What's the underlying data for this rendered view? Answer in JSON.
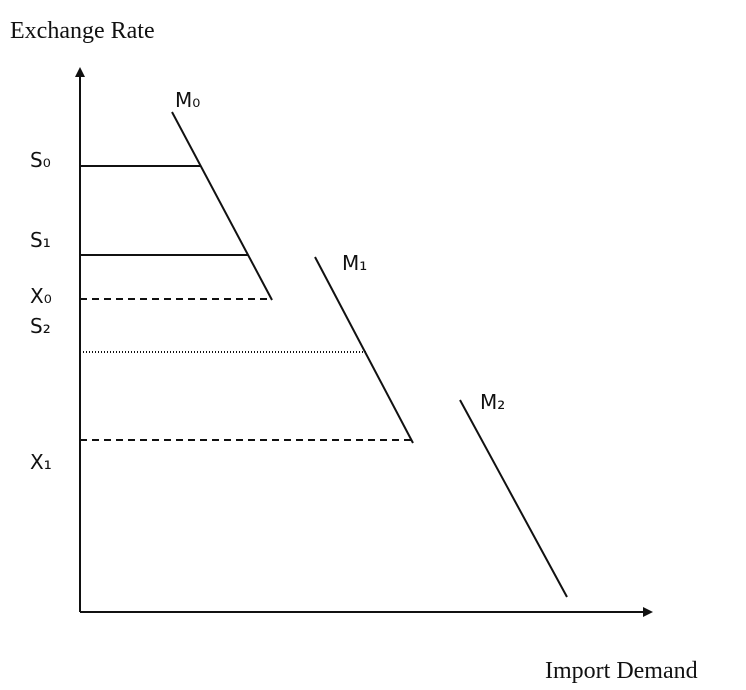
{
  "axes": {
    "y_label": "Exchange Rate",
    "x_label": "Import Demand"
  },
  "curves": [
    {
      "label": "M₀"
    },
    {
      "label": "M₁"
    },
    {
      "label": "M₂"
    }
  ],
  "levels": [
    {
      "label": "S₀"
    },
    {
      "label": "S₁"
    },
    {
      "label": "X₀"
    },
    {
      "label": "S₂"
    },
    {
      "label": "X₁"
    }
  ]
}
